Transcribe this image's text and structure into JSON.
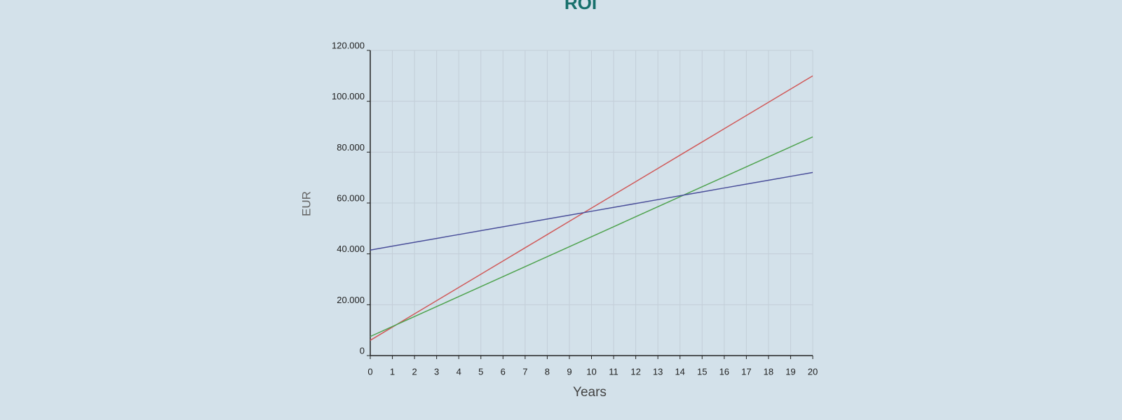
{
  "chart_data": {
    "type": "line",
    "title": "ROI",
    "x_label": "Years",
    "y_label": "EUR",
    "x": [
      0,
      1,
      2,
      3,
      4,
      5,
      6,
      7,
      8,
      9,
      10,
      11,
      12,
      13,
      14,
      15,
      16,
      17,
      18,
      19,
      20
    ],
    "series": [
      {
        "color": "#d05a5a",
        "values": [
          6000,
          11200,
          16400,
          21600,
          26800,
          32000,
          37200,
          42400,
          47600,
          52800,
          58000,
          63200,
          68400,
          73600,
          78800,
          84000,
          89200,
          94400,
          99600,
          104800,
          110000
        ]
      },
      {
        "color": "#4fa34f",
        "values": [
          7500,
          11425,
          15350,
          19275,
          23200,
          27125,
          31050,
          34975,
          38900,
          42825,
          46750,
          50675,
          54600,
          58525,
          62450,
          66375,
          70300,
          74225,
          78150,
          82075,
          86000
        ]
      },
      {
        "color": "#4a4f9a",
        "values": [
          41500,
          43025,
          44550,
          46075,
          47600,
          49125,
          50650,
          52175,
          53700,
          55225,
          56750,
          58275,
          59800,
          61325,
          62850,
          64375,
          65900,
          67425,
          68950,
          70475,
          72000
        ]
      }
    ],
    "xlim": [
      0,
      20
    ],
    "ylim": [
      0,
      120000
    ],
    "xticks": [
      0,
      1,
      2,
      3,
      4,
      5,
      6,
      7,
      8,
      9,
      10,
      11,
      12,
      13,
      14,
      15,
      16,
      17,
      18,
      19,
      20
    ],
    "yticks": [
      0,
      {
        "value": 20000,
        "label": "20.000"
      },
      {
        "value": 40000,
        "label": "40.000"
      },
      {
        "value": 60000,
        "label": "60.000"
      },
      {
        "value": 80000,
        "label": "80.000"
      },
      {
        "value": 100000,
        "label": "100.000"
      },
      {
        "value": 120000,
        "label": "120.000"
      }
    ],
    "grid": true
  }
}
